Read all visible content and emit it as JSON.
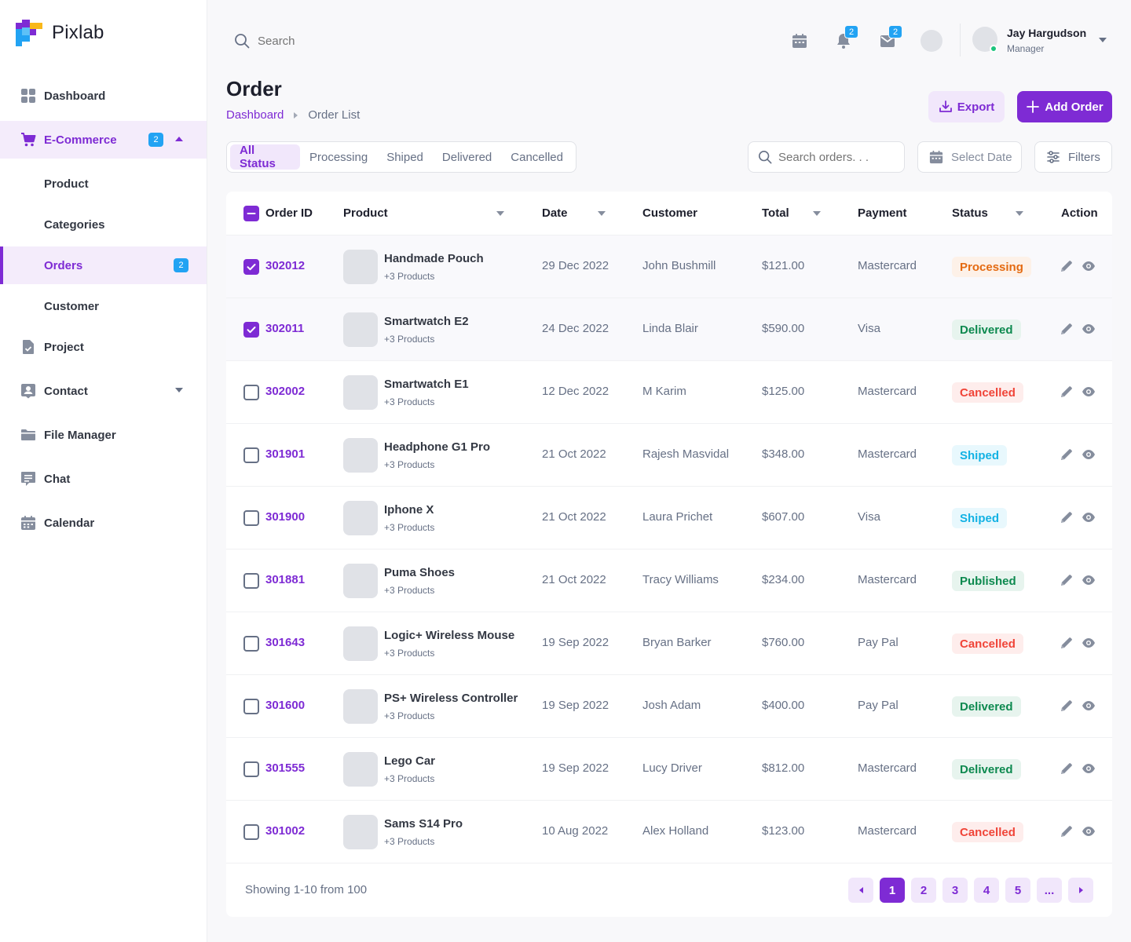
{
  "app": {
    "name": "Pixlab"
  },
  "colors": {
    "accent": "#7E2BD4",
    "accent_soft": "#F1E7FB",
    "badge": "#22A3F3",
    "online": "#1BC47D"
  },
  "sidebar": {
    "items": [
      {
        "label": "Dashboard",
        "icon": "grid-icon"
      },
      {
        "label": "E-Commerce",
        "icon": "cart-icon",
        "badge": "2",
        "expanded": true,
        "children": [
          {
            "label": "Product"
          },
          {
            "label": "Categories"
          },
          {
            "label": "Orders",
            "badge": "2",
            "active": true
          },
          {
            "label": "Customer"
          }
        ]
      },
      {
        "label": "Project",
        "icon": "file-check-icon"
      },
      {
        "label": "Contact",
        "icon": "contact-icon"
      },
      {
        "label": "File Manager",
        "icon": "folder-icon"
      },
      {
        "label": "Chat",
        "icon": "chat-icon"
      },
      {
        "label": "Calendar",
        "icon": "calendar-icon"
      }
    ]
  },
  "topbar": {
    "search_placeholder": "Search",
    "notifications_count": "2",
    "messages_count": "2",
    "user": {
      "name": "Jay Hargudson",
      "role": "Manager"
    }
  },
  "header": {
    "title": "Order",
    "breadcrumb": [
      "Dashboard",
      "Order List"
    ],
    "export_label": "Export",
    "add_label": "Add Order"
  },
  "filters": {
    "tabs": [
      "All Status",
      "Processing",
      "Shiped",
      "Delivered",
      "Cancelled"
    ],
    "active_tab": "All Status",
    "search_placeholder": "Search orders. . .",
    "date_label": "Select Date",
    "filters_label": "Filters"
  },
  "table": {
    "columns": [
      "Order ID",
      "Product",
      "Date",
      "Customer",
      "Total",
      "Payment",
      "Status",
      "Action"
    ],
    "rows": [
      {
        "id": "302012",
        "product": "Handmade Pouch",
        "sub": "+3 Products",
        "date": "29 Dec 2022",
        "customer": "John Bushmill",
        "total": "$121.00",
        "payment": "Mastercard",
        "status": "Processing",
        "checked": true
      },
      {
        "id": "302011",
        "product": "Smartwatch E2",
        "sub": "+3 Products",
        "date": "24 Dec 2022",
        "customer": "Linda Blair",
        "total": "$590.00",
        "payment": "Visa",
        "status": "Delivered",
        "checked": true
      },
      {
        "id": "302002",
        "product": "Smartwatch E1",
        "sub": "+3 Products",
        "date": "12 Dec 2022",
        "customer": "M Karim",
        "total": "$125.00",
        "payment": "Mastercard",
        "status": "Cancelled",
        "checked": false
      },
      {
        "id": "301901",
        "product": "Headphone G1 Pro",
        "sub": "+3 Products",
        "date": "21 Oct 2022",
        "customer": "Rajesh Masvidal",
        "total": "$348.00",
        "payment": "Mastercard",
        "status": "Shiped",
        "checked": false
      },
      {
        "id": "301900",
        "product": "Iphone X",
        "sub": "+3 Products",
        "date": "21 Oct 2022",
        "customer": "Laura Prichet",
        "total": "$607.00",
        "payment": "Visa",
        "status": "Shiped",
        "checked": false
      },
      {
        "id": "301881",
        "product": "Puma Shoes",
        "sub": "+3 Products",
        "date": "21 Oct 2022",
        "customer": "Tracy Williams",
        "total": "$234.00",
        "payment": "Mastercard",
        "status": "Published",
        "checked": false
      },
      {
        "id": "301643",
        "product": "Logic+ Wireless Mouse",
        "sub": "+3 Products",
        "date": "19 Sep 2022",
        "customer": "Bryan Barker",
        "total": "$760.00",
        "payment": "Pay Pal",
        "status": "Cancelled",
        "checked": false
      },
      {
        "id": "301600",
        "product": "PS+ Wireless Controller",
        "sub": "+3 Products",
        "date": "19 Sep 2022",
        "customer": "Josh Adam",
        "total": "$400.00",
        "payment": "Pay Pal",
        "status": "Delivered",
        "checked": false
      },
      {
        "id": "301555",
        "product": "Lego Car",
        "sub": "+3 Products",
        "date": "19 Sep 2022",
        "customer": "Lucy Driver",
        "total": "$812.00",
        "payment": "Mastercard",
        "status": "Delivered",
        "checked": false
      },
      {
        "id": "301002",
        "product": "Sams S14 Pro",
        "sub": "+3 Products",
        "date": "10 Aug 2022",
        "customer": "Alex Holland",
        "total": "$123.00",
        "payment": "Mastercard",
        "status": "Cancelled",
        "checked": false
      }
    ],
    "status_colors": {
      "Processing": {
        "bg": "#FDF1E8",
        "fg": "#E46A11"
      },
      "Delivered": {
        "bg": "#E7F4EE",
        "fg": "#0D894F"
      },
      "Cancelled": {
        "bg": "#FEEDEC",
        "fg": "#F04438"
      },
      "Shiped": {
        "bg": "#E8F8FD",
        "fg": "#13B2E4"
      },
      "Published": {
        "bg": "#E7F4EE",
        "fg": "#0D894F"
      }
    }
  },
  "pagination": {
    "summary": "Showing 1-10 from 100",
    "pages": [
      "1",
      "2",
      "3",
      "4",
      "5",
      "..."
    ],
    "current": "1"
  }
}
